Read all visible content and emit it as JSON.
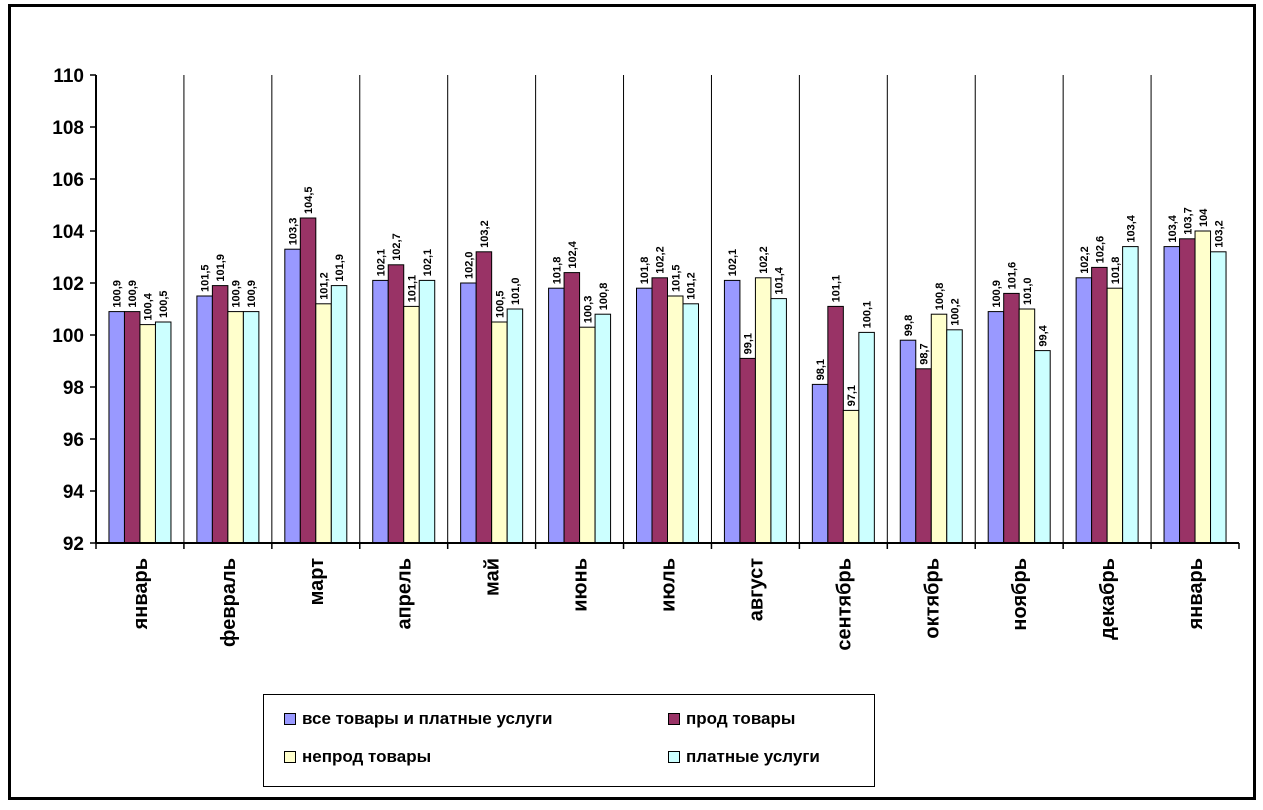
{
  "chart_data": {
    "type": "bar",
    "title": "",
    "xlabel": "",
    "ylabel": "",
    "ylim": [
      92,
      110
    ],
    "yticks": [
      92,
      94,
      96,
      98,
      100,
      102,
      104,
      106,
      108,
      110
    ],
    "grid": "vertical separators between categories",
    "legend_position": "bottom",
    "categories": [
      "январь",
      "февраль",
      "март",
      "апрель",
      "май",
      "июнь",
      "июль",
      "август",
      "сентябрь",
      "октябрь",
      "ноябрь",
      "декабрь",
      "январь"
    ],
    "series": [
      {
        "name": "все товары и платные услуги",
        "color": "#9999ff",
        "values": [
          100.9,
          101.5,
          103.3,
          102.1,
          102.0,
          101.8,
          101.8,
          102.1,
          98.1,
          99.8,
          100.9,
          102.2,
          103.4
        ],
        "labels": [
          "100,9",
          "101,5",
          "103,3",
          "102,1",
          "102,0",
          "101,8",
          "101,8",
          "102,1",
          "98,1",
          "99,8",
          "100,9",
          "102,2",
          "103,4"
        ]
      },
      {
        "name": "прод товары",
        "color": "#993366",
        "values": [
          100.9,
          101.9,
          104.5,
          102.7,
          103.2,
          102.4,
          102.2,
          99.1,
          101.1,
          98.7,
          101.6,
          102.6,
          103.7
        ],
        "labels": [
          "100,9",
          "101,9",
          "104,5",
          "102,7",
          "103,2",
          "102,4",
          "102,2",
          "99,1",
          "101,1",
          "98,7",
          "101,6",
          "102,6",
          "103,7"
        ]
      },
      {
        "name": "непрод товары",
        "color": "#ffffcc",
        "values": [
          100.4,
          100.9,
          101.2,
          101.1,
          100.5,
          100.3,
          101.5,
          102.2,
          97.1,
          100.8,
          101.0,
          101.8,
          104.0
        ],
        "labels": [
          "100,4",
          "100,9",
          "101,2",
          "101,1",
          "100,5",
          "100,3",
          "101,5",
          "102,2",
          "97,1",
          "100,8",
          "101,0",
          "101,8",
          "104"
        ]
      },
      {
        "name": "платные услуги",
        "color": "#ccffff",
        "values": [
          100.5,
          100.9,
          101.9,
          102.1,
          101.0,
          100.8,
          101.2,
          101.4,
          100.1,
          100.2,
          99.4,
          103.4,
          103.2
        ],
        "labels": [
          "100,5",
          "100,9",
          "101,9",
          "102,1",
          "101,0",
          "100,8",
          "101,2",
          "101,4",
          "100,1",
          "100,2",
          "99,4",
          "103,4",
          "103,2"
        ]
      }
    ]
  },
  "legend": {
    "items": [
      {
        "label": "все товары и платные услуги",
        "color": "#9999ff"
      },
      {
        "label": "прод товары",
        "color": "#993366"
      },
      {
        "label": "непрод товары",
        "color": "#ffffcc"
      },
      {
        "label": "платные услуги",
        "color": "#ccffff"
      }
    ]
  }
}
